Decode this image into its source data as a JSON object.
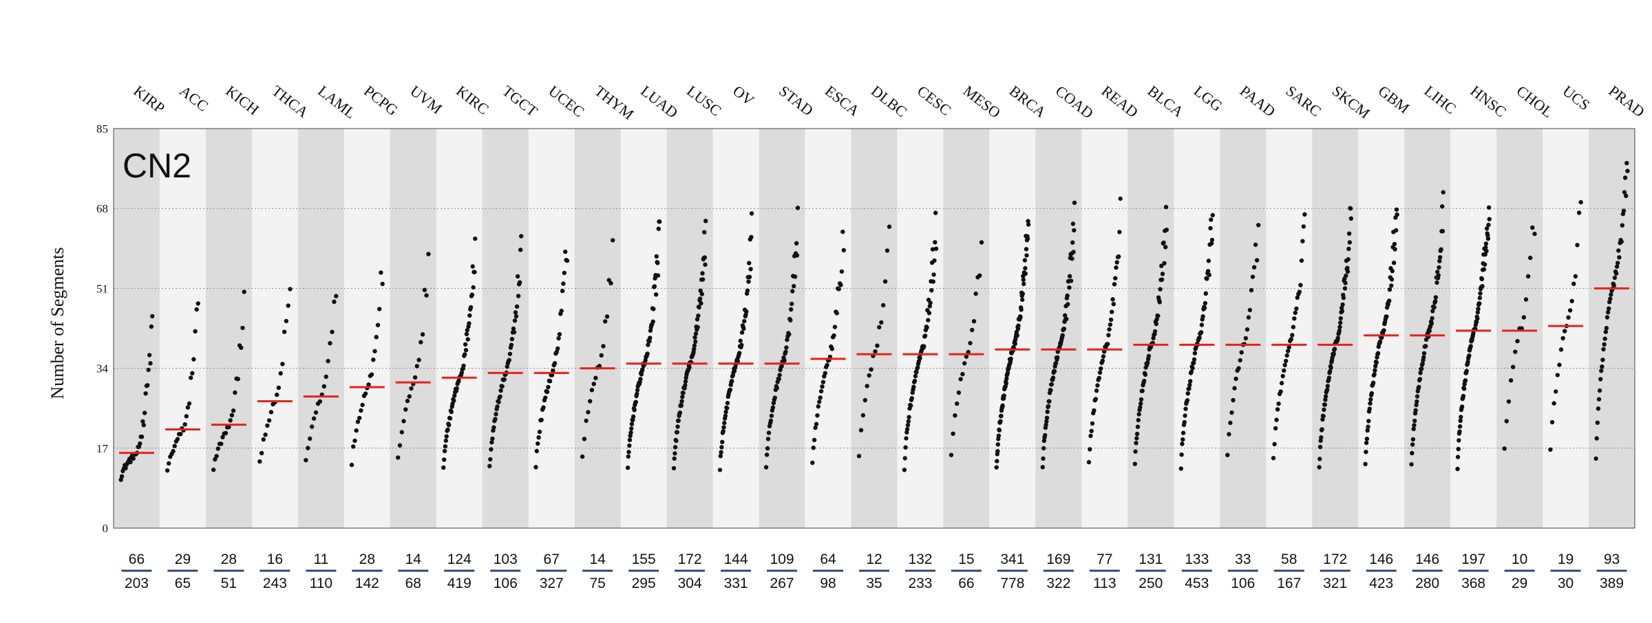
{
  "chart_data": {
    "type": "scatter",
    "title": "CN2",
    "ylabel": "Number of Segments",
    "ylim": [
      0,
      85
    ],
    "yticks": [
      0,
      17,
      34,
      51,
      68,
      85
    ],
    "grid": "horizontal dotted",
    "colors": {
      "points": "#111111",
      "median": "#e8201c",
      "band_dark": "#dcdcdc",
      "band_light": "#f3f3f3",
      "count_underline": "#2f4a6b"
    },
    "categories": [
      "KIRP",
      "ACC",
      "KICH",
      "THCA",
      "LAML",
      "PCPG",
      "UVM",
      "KIRC",
      "TGCT",
      "UCEC",
      "THYM",
      "LUAD",
      "LUSC",
      "OV",
      "STAD",
      "ESCA",
      "DLBC",
      "CESC",
      "MESO",
      "BRCA",
      "COAD",
      "READ",
      "BLCA",
      "LGG",
      "PAAD",
      "SARC",
      "SKCM",
      "GBM",
      "LIHC",
      "HNSC",
      "CHOL",
      "UCS",
      "PRAD"
    ],
    "medians": [
      16,
      21,
      22,
      27,
      28,
      30,
      31,
      32,
      33,
      33,
      34,
      35,
      35,
      35,
      35,
      36,
      37,
      37,
      37,
      38,
      38,
      38,
      39,
      39,
      39,
      39,
      39,
      41,
      41,
      42,
      42,
      43,
      51
    ],
    "count_top": [
      66,
      29,
      28,
      16,
      11,
      28,
      14,
      124,
      103,
      67,
      14,
      155,
      172,
      144,
      109,
      64,
      12,
      132,
      15,
      341,
      169,
      77,
      131,
      133,
      33,
      58,
      172,
      146,
      146,
      197,
      10,
      19,
      93
    ],
    "count_bottom": [
      203,
      65,
      51,
      243,
      110,
      142,
      68,
      419,
      106,
      327,
      75,
      295,
      304,
      331,
      267,
      98,
      35,
      233,
      66,
      778,
      322,
      113,
      250,
      453,
      106,
      167,
      321,
      423,
      280,
      368,
      29,
      30,
      389
    ]
  }
}
